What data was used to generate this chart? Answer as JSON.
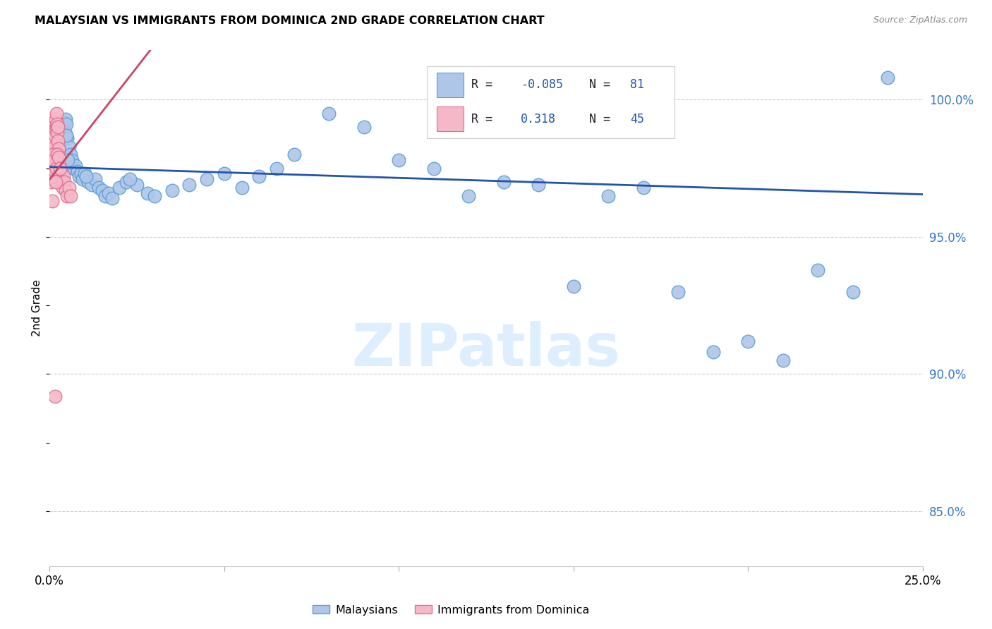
{
  "title": "MALAYSIAN VS IMMIGRANTS FROM DOMINICA 2ND GRADE CORRELATION CHART",
  "source": "Source: ZipAtlas.com",
  "ylabel": "2nd Grade",
  "ytick_values": [
    85.0,
    90.0,
    95.0,
    100.0
  ],
  "xmin": 0.0,
  "xmax": 25.0,
  "ymin": 83.0,
  "ymax": 101.8,
  "legend_blue_label": "Malaysians",
  "legend_pink_label": "Immigrants from Dominica",
  "R_blue": -0.085,
  "N_blue": 81,
  "R_pink": 0.318,
  "N_pink": 45,
  "blue_color": "#aec6e8",
  "pink_color": "#f5b8c8",
  "blue_edge_color": "#5a9fd4",
  "pink_edge_color": "#e07090",
  "blue_line_color": "#2255aa",
  "pink_line_color": "#cc4466",
  "watermark": "ZIPatlas",
  "watermark_color": "#ddeeff",
  "blue_line_y0": 97.55,
  "blue_line_y1": 96.55,
  "pink_line_y0": 97.1,
  "pink_line_y1": 99.55,
  "pink_line_x1": 1.5,
  "blue_scatter": [
    [
      0.05,
      97.3
    ],
    [
      0.07,
      97.5
    ],
    [
      0.09,
      97.8
    ],
    [
      0.1,
      98.0
    ],
    [
      0.12,
      98.2
    ],
    [
      0.13,
      97.6
    ],
    [
      0.15,
      97.9
    ],
    [
      0.17,
      98.1
    ],
    [
      0.18,
      97.7
    ],
    [
      0.2,
      98.3
    ],
    [
      0.22,
      98.0
    ],
    [
      0.24,
      97.5
    ],
    [
      0.25,
      98.5
    ],
    [
      0.27,
      98.4
    ],
    [
      0.28,
      98.6
    ],
    [
      0.3,
      98.7
    ],
    [
      0.32,
      98.5
    ],
    [
      0.33,
      98.8
    ],
    [
      0.35,
      98.9
    ],
    [
      0.37,
      99.0
    ],
    [
      0.38,
      99.1
    ],
    [
      0.4,
      99.2
    ],
    [
      0.42,
      99.0
    ],
    [
      0.44,
      98.8
    ],
    [
      0.45,
      99.3
    ],
    [
      0.47,
      99.1
    ],
    [
      0.5,
      98.6
    ],
    [
      0.55,
      98.3
    ],
    [
      0.6,
      98.0
    ],
    [
      0.65,
      97.8
    ],
    [
      0.7,
      97.5
    ],
    [
      0.75,
      97.6
    ],
    [
      0.8,
      97.4
    ],
    [
      0.85,
      97.2
    ],
    [
      0.9,
      97.3
    ],
    [
      0.95,
      97.1
    ],
    [
      1.0,
      97.3
    ],
    [
      1.1,
      97.0
    ],
    [
      1.2,
      96.9
    ],
    [
      1.3,
      97.1
    ],
    [
      1.4,
      96.8
    ],
    [
      1.5,
      96.7
    ],
    [
      1.6,
      96.5
    ],
    [
      1.7,
      96.6
    ],
    [
      1.8,
      96.4
    ],
    [
      2.0,
      96.8
    ],
    [
      2.2,
      97.0
    ],
    [
      2.5,
      96.9
    ],
    [
      2.8,
      96.6
    ],
    [
      3.0,
      96.5
    ],
    [
      3.5,
      96.7
    ],
    [
      4.0,
      96.9
    ],
    [
      4.5,
      97.1
    ],
    [
      5.0,
      97.3
    ],
    [
      5.5,
      96.8
    ],
    [
      6.0,
      97.2
    ],
    [
      6.5,
      97.5
    ],
    [
      7.0,
      98.0
    ],
    [
      8.0,
      99.5
    ],
    [
      9.0,
      99.0
    ],
    [
      10.0,
      97.8
    ],
    [
      11.0,
      97.5
    ],
    [
      12.0,
      96.5
    ],
    [
      13.0,
      97.0
    ],
    [
      14.0,
      96.9
    ],
    [
      15.0,
      93.2
    ],
    [
      16.0,
      96.5
    ],
    [
      17.0,
      96.8
    ],
    [
      18.0,
      93.0
    ],
    [
      19.0,
      90.8
    ],
    [
      20.0,
      91.2
    ],
    [
      21.0,
      90.5
    ],
    [
      22.0,
      93.8
    ],
    [
      23.0,
      93.0
    ],
    [
      24.0,
      100.8
    ],
    [
      0.06,
      97.1
    ],
    [
      0.11,
      97.9
    ],
    [
      0.26,
      98.2
    ],
    [
      0.48,
      98.7
    ],
    [
      0.52,
      97.8
    ],
    [
      1.05,
      97.2
    ],
    [
      2.3,
      97.1
    ]
  ],
  "pink_scatter": [
    [
      0.04,
      97.0
    ],
    [
      0.06,
      97.3
    ],
    [
      0.08,
      97.8
    ],
    [
      0.09,
      98.2
    ],
    [
      0.1,
      98.5
    ],
    [
      0.11,
      97.6
    ],
    [
      0.12,
      98.0
    ],
    [
      0.13,
      98.3
    ],
    [
      0.14,
      99.0
    ],
    [
      0.15,
      98.7
    ],
    [
      0.16,
      99.2
    ],
    [
      0.17,
      98.9
    ],
    [
      0.18,
      99.3
    ],
    [
      0.19,
      99.0
    ],
    [
      0.2,
      99.5
    ],
    [
      0.21,
      99.1
    ],
    [
      0.22,
      98.8
    ],
    [
      0.23,
      99.0
    ],
    [
      0.24,
      98.5
    ],
    [
      0.25,
      98.2
    ],
    [
      0.26,
      97.9
    ],
    [
      0.27,
      97.6
    ],
    [
      0.28,
      97.3
    ],
    [
      0.3,
      97.1
    ],
    [
      0.32,
      97.4
    ],
    [
      0.35,
      97.0
    ],
    [
      0.38,
      96.8
    ],
    [
      0.4,
      97.2
    ],
    [
      0.42,
      97.0
    ],
    [
      0.45,
      96.7
    ],
    [
      0.5,
      96.5
    ],
    [
      0.55,
      96.8
    ],
    [
      0.6,
      96.5
    ],
    [
      0.07,
      97.2
    ],
    [
      0.09,
      97.5
    ],
    [
      0.1,
      98.0
    ],
    [
      0.12,
      97.8
    ],
    [
      0.15,
      97.4
    ],
    [
      0.17,
      97.0
    ],
    [
      0.2,
      97.5
    ],
    [
      0.22,
      98.0
    ],
    [
      0.25,
      97.9
    ],
    [
      0.3,
      97.5
    ],
    [
      0.15,
      89.2
    ],
    [
      0.08,
      96.3
    ]
  ]
}
